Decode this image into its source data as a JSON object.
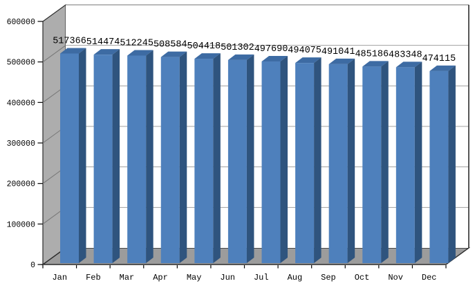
{
  "window": {
    "background": "#ffffff"
  },
  "chart_data": {
    "type": "bar",
    "projection": "3d-column",
    "title": "",
    "xlabel": "",
    "ylabel": "",
    "categories": [
      "Jan",
      "Feb",
      "Mar",
      "Apr",
      "May",
      "Jun",
      "Jul",
      "Aug",
      "Sep",
      "Oct",
      "Nov",
      "Dec"
    ],
    "values": [
      517366,
      514474,
      512245,
      508584,
      504418,
      501302,
      497690,
      494075,
      491041,
      485186,
      483348,
      474115
    ],
    "data_labels": [
      "517366",
      "514474",
      "512245",
      "508584",
      "504418",
      "501302",
      "497690",
      "494075",
      "491041",
      "485186",
      "483348",
      "474115"
    ],
    "data_labels_visible": true,
    "ylim": [
      0,
      600000
    ],
    "y_tick_interval": 100000,
    "y_ticks": [
      "0",
      "100000",
      "200000",
      "300000",
      "400000",
      "500000",
      "600000"
    ],
    "grid": true,
    "legend": "none"
  },
  "colors": {
    "bar_front": "#4E80BC",
    "bar_top": "#3D6BA3",
    "bar_side": "#2F547E",
    "wall_side": "#ADADAD",
    "floor": "#9C9C9C",
    "back_wall": "#FFFFFF",
    "back_gridline": "#A0A0A0",
    "wall_gridline": "#777777",
    "outline": "#2B2B2B",
    "text": "#000000"
  }
}
